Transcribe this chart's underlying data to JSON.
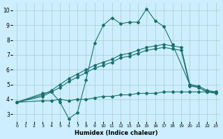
{
  "xlabel": "Humidex (Indice chaleur)",
  "bg_color": "#cceeff",
  "grid_color": "#aacccc",
  "line_color": "#1a7070",
  "xlim": [
    -0.5,
    23.5
  ],
  "ylim": [
    2.5,
    10.5
  ],
  "xticks": [
    0,
    1,
    2,
    3,
    4,
    5,
    6,
    7,
    8,
    9,
    10,
    11,
    12,
    13,
    14,
    15,
    16,
    17,
    18,
    19,
    20,
    21,
    22,
    23
  ],
  "yticks": [
    3,
    4,
    5,
    6,
    7,
    8,
    9,
    10
  ],
  "series1_x": [
    0,
    3,
    4,
    5,
    6,
    7,
    8,
    9,
    10,
    11,
    12,
    13,
    14,
    15,
    16,
    17,
    18,
    20,
    21,
    22,
    23
  ],
  "series1_y": [
    3.8,
    4.4,
    4.5,
    3.8,
    2.7,
    3.1,
    5.3,
    7.8,
    9.0,
    9.5,
    9.1,
    9.2,
    9.2,
    10.1,
    9.3,
    8.9,
    7.7,
    5.0,
    4.8,
    4.5,
    4.5
  ],
  "series2_x": [
    0,
    3,
    4,
    5,
    6,
    7,
    8,
    9,
    10,
    11,
    12,
    13,
    14,
    15,
    16,
    17,
    18,
    19,
    20,
    21,
    22,
    23
  ],
  "series2_y": [
    3.8,
    4.3,
    4.6,
    5.0,
    5.4,
    5.7,
    6.0,
    6.3,
    6.5,
    6.7,
    7.0,
    7.1,
    7.3,
    7.5,
    7.6,
    7.7,
    7.6,
    7.5,
    5.0,
    4.9,
    4.6,
    4.5
  ],
  "series3_x": [
    0,
    3,
    4,
    5,
    6,
    7,
    8,
    9,
    10,
    11,
    12,
    13,
    14,
    15,
    16,
    17,
    18,
    19,
    20,
    21,
    22,
    23
  ],
  "series3_y": [
    3.8,
    4.2,
    4.5,
    4.8,
    5.2,
    5.5,
    5.8,
    6.1,
    6.3,
    6.5,
    6.8,
    6.9,
    7.1,
    7.3,
    7.4,
    7.5,
    7.4,
    7.3,
    4.9,
    4.8,
    4.5,
    4.4
  ],
  "series4_x": [
    0,
    3,
    4,
    5,
    6,
    7,
    8,
    9,
    10,
    11,
    12,
    13,
    14,
    15,
    16,
    17,
    18,
    19,
    20,
    21,
    22,
    23
  ],
  "series4_y": [
    3.8,
    3.9,
    3.9,
    4.0,
    3.9,
    4.0,
    4.0,
    4.1,
    4.2,
    4.2,
    4.3,
    4.3,
    4.4,
    4.4,
    4.4,
    4.5,
    4.5,
    4.5,
    4.5,
    4.5,
    4.5,
    4.5
  ]
}
